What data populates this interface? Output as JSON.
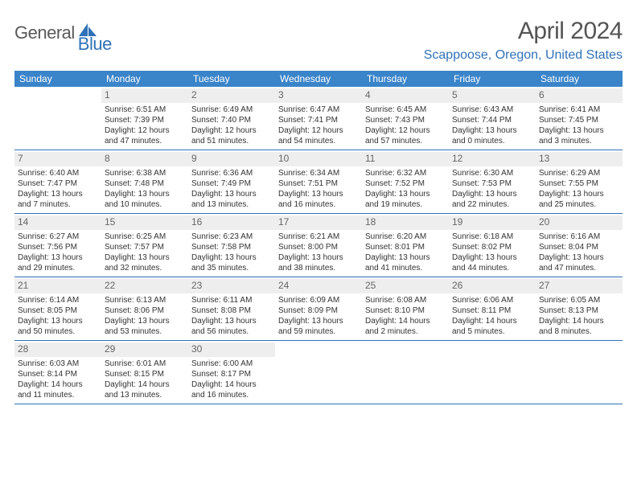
{
  "brand": {
    "part1": "General",
    "part2": "Blue"
  },
  "colors": {
    "header_bg": "#3a84c9",
    "accent": "#2f72b8",
    "daynum_bg": "#eeeeee",
    "text": "#333333",
    "muted": "#666666"
  },
  "title": "April 2024",
  "location": "Scappoose, Oregon, United States",
  "weekdays": [
    "Sunday",
    "Monday",
    "Tuesday",
    "Wednesday",
    "Thursday",
    "Friday",
    "Saturday"
  ],
  "weeks": [
    [
      {
        "n": "",
        "sunrise": "",
        "sunset": "",
        "d1": "",
        "d2": ""
      },
      {
        "n": "1",
        "sunrise": "Sunrise: 6:51 AM",
        "sunset": "Sunset: 7:39 PM",
        "d1": "Daylight: 12 hours",
        "d2": "and 47 minutes."
      },
      {
        "n": "2",
        "sunrise": "Sunrise: 6:49 AM",
        "sunset": "Sunset: 7:40 PM",
        "d1": "Daylight: 12 hours",
        "d2": "and 51 minutes."
      },
      {
        "n": "3",
        "sunrise": "Sunrise: 6:47 AM",
        "sunset": "Sunset: 7:41 PM",
        "d1": "Daylight: 12 hours",
        "d2": "and 54 minutes."
      },
      {
        "n": "4",
        "sunrise": "Sunrise: 6:45 AM",
        "sunset": "Sunset: 7:43 PM",
        "d1": "Daylight: 12 hours",
        "d2": "and 57 minutes."
      },
      {
        "n": "5",
        "sunrise": "Sunrise: 6:43 AM",
        "sunset": "Sunset: 7:44 PM",
        "d1": "Daylight: 13 hours",
        "d2": "and 0 minutes."
      },
      {
        "n": "6",
        "sunrise": "Sunrise: 6:41 AM",
        "sunset": "Sunset: 7:45 PM",
        "d1": "Daylight: 13 hours",
        "d2": "and 3 minutes."
      }
    ],
    [
      {
        "n": "7",
        "sunrise": "Sunrise: 6:40 AM",
        "sunset": "Sunset: 7:47 PM",
        "d1": "Daylight: 13 hours",
        "d2": "and 7 minutes."
      },
      {
        "n": "8",
        "sunrise": "Sunrise: 6:38 AM",
        "sunset": "Sunset: 7:48 PM",
        "d1": "Daylight: 13 hours",
        "d2": "and 10 minutes."
      },
      {
        "n": "9",
        "sunrise": "Sunrise: 6:36 AM",
        "sunset": "Sunset: 7:49 PM",
        "d1": "Daylight: 13 hours",
        "d2": "and 13 minutes."
      },
      {
        "n": "10",
        "sunrise": "Sunrise: 6:34 AM",
        "sunset": "Sunset: 7:51 PM",
        "d1": "Daylight: 13 hours",
        "d2": "and 16 minutes."
      },
      {
        "n": "11",
        "sunrise": "Sunrise: 6:32 AM",
        "sunset": "Sunset: 7:52 PM",
        "d1": "Daylight: 13 hours",
        "d2": "and 19 minutes."
      },
      {
        "n": "12",
        "sunrise": "Sunrise: 6:30 AM",
        "sunset": "Sunset: 7:53 PM",
        "d1": "Daylight: 13 hours",
        "d2": "and 22 minutes."
      },
      {
        "n": "13",
        "sunrise": "Sunrise: 6:29 AM",
        "sunset": "Sunset: 7:55 PM",
        "d1": "Daylight: 13 hours",
        "d2": "and 25 minutes."
      }
    ],
    [
      {
        "n": "14",
        "sunrise": "Sunrise: 6:27 AM",
        "sunset": "Sunset: 7:56 PM",
        "d1": "Daylight: 13 hours",
        "d2": "and 29 minutes."
      },
      {
        "n": "15",
        "sunrise": "Sunrise: 6:25 AM",
        "sunset": "Sunset: 7:57 PM",
        "d1": "Daylight: 13 hours",
        "d2": "and 32 minutes."
      },
      {
        "n": "16",
        "sunrise": "Sunrise: 6:23 AM",
        "sunset": "Sunset: 7:58 PM",
        "d1": "Daylight: 13 hours",
        "d2": "and 35 minutes."
      },
      {
        "n": "17",
        "sunrise": "Sunrise: 6:21 AM",
        "sunset": "Sunset: 8:00 PM",
        "d1": "Daylight: 13 hours",
        "d2": "and 38 minutes."
      },
      {
        "n": "18",
        "sunrise": "Sunrise: 6:20 AM",
        "sunset": "Sunset: 8:01 PM",
        "d1": "Daylight: 13 hours",
        "d2": "and 41 minutes."
      },
      {
        "n": "19",
        "sunrise": "Sunrise: 6:18 AM",
        "sunset": "Sunset: 8:02 PM",
        "d1": "Daylight: 13 hours",
        "d2": "and 44 minutes."
      },
      {
        "n": "20",
        "sunrise": "Sunrise: 6:16 AM",
        "sunset": "Sunset: 8:04 PM",
        "d1": "Daylight: 13 hours",
        "d2": "and 47 minutes."
      }
    ],
    [
      {
        "n": "21",
        "sunrise": "Sunrise: 6:14 AM",
        "sunset": "Sunset: 8:05 PM",
        "d1": "Daylight: 13 hours",
        "d2": "and 50 minutes."
      },
      {
        "n": "22",
        "sunrise": "Sunrise: 6:13 AM",
        "sunset": "Sunset: 8:06 PM",
        "d1": "Daylight: 13 hours",
        "d2": "and 53 minutes."
      },
      {
        "n": "23",
        "sunrise": "Sunrise: 6:11 AM",
        "sunset": "Sunset: 8:08 PM",
        "d1": "Daylight: 13 hours",
        "d2": "and 56 minutes."
      },
      {
        "n": "24",
        "sunrise": "Sunrise: 6:09 AM",
        "sunset": "Sunset: 8:09 PM",
        "d1": "Daylight: 13 hours",
        "d2": "and 59 minutes."
      },
      {
        "n": "25",
        "sunrise": "Sunrise: 6:08 AM",
        "sunset": "Sunset: 8:10 PM",
        "d1": "Daylight: 14 hours",
        "d2": "and 2 minutes."
      },
      {
        "n": "26",
        "sunrise": "Sunrise: 6:06 AM",
        "sunset": "Sunset: 8:11 PM",
        "d1": "Daylight: 14 hours",
        "d2": "and 5 minutes."
      },
      {
        "n": "27",
        "sunrise": "Sunrise: 6:05 AM",
        "sunset": "Sunset: 8:13 PM",
        "d1": "Daylight: 14 hours",
        "d2": "and 8 minutes."
      }
    ],
    [
      {
        "n": "28",
        "sunrise": "Sunrise: 6:03 AM",
        "sunset": "Sunset: 8:14 PM",
        "d1": "Daylight: 14 hours",
        "d2": "and 11 minutes."
      },
      {
        "n": "29",
        "sunrise": "Sunrise: 6:01 AM",
        "sunset": "Sunset: 8:15 PM",
        "d1": "Daylight: 14 hours",
        "d2": "and 13 minutes."
      },
      {
        "n": "30",
        "sunrise": "Sunrise: 6:00 AM",
        "sunset": "Sunset: 8:17 PM",
        "d1": "Daylight: 14 hours",
        "d2": "and 16 minutes."
      },
      {
        "n": "",
        "sunrise": "",
        "sunset": "",
        "d1": "",
        "d2": ""
      },
      {
        "n": "",
        "sunrise": "",
        "sunset": "",
        "d1": "",
        "d2": ""
      },
      {
        "n": "",
        "sunrise": "",
        "sunset": "",
        "d1": "",
        "d2": ""
      },
      {
        "n": "",
        "sunrise": "",
        "sunset": "",
        "d1": "",
        "d2": ""
      }
    ]
  ]
}
